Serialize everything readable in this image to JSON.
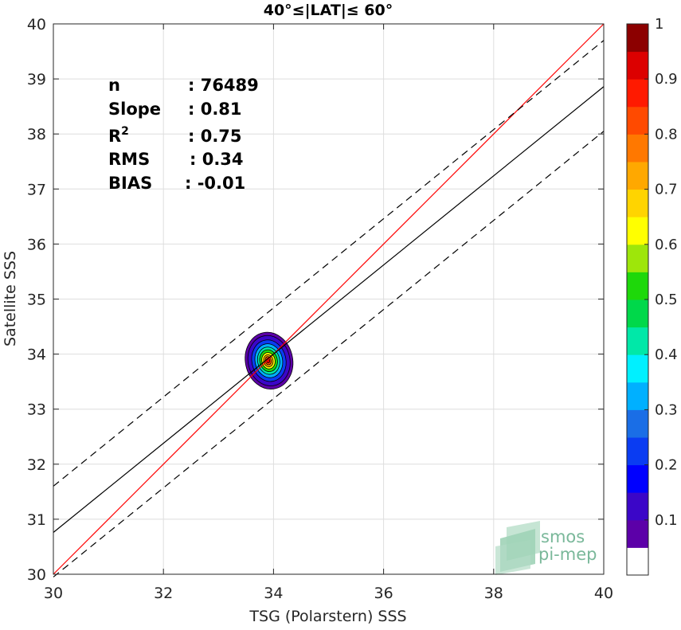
{
  "chart_data": {
    "type": "heatmap",
    "title": "40°≤|LAT|≤ 60°",
    "xlabel": "TSG (Polarstern) SSS",
    "ylabel": "Satellite SSS",
    "xlim": [
      30,
      40
    ],
    "ylim": [
      30,
      40
    ],
    "xticks": [
      "30",
      "32",
      "34",
      "36",
      "38",
      "40"
    ],
    "yticks": [
      "30",
      "31",
      "32",
      "33",
      "34",
      "35",
      "36",
      "37",
      "38",
      "39",
      "40"
    ],
    "grid": true,
    "stats": [
      {
        "label": "n",
        "value": ": 76489"
      },
      {
        "label": "Slope",
        "value": ": 0.81"
      },
      {
        "label": "R",
        "sup": "2",
        "value": ": 0.75"
      },
      {
        "label": "RMS",
        "value": ": 0.34"
      },
      {
        "label": "BIAS",
        "value": ": -0.01"
      }
    ],
    "lines": [
      {
        "name": "one-to-one",
        "color": "#ff0000",
        "style": "solid",
        "x": [
          30,
          40
        ],
        "y": [
          30,
          40
        ]
      },
      {
        "name": "regression",
        "color": "#000000",
        "style": "solid",
        "x": [
          30,
          40
        ],
        "y": [
          30.76,
          38.86
        ]
      },
      {
        "name": "upper-bound",
        "color": "#000000",
        "style": "dashed",
        "x": [
          30,
          40
        ],
        "y": [
          31.6,
          39.7
        ]
      },
      {
        "name": "lower-bound",
        "color": "#000000",
        "style": "dashed",
        "x": [
          30,
          40
        ],
        "y": [
          29.95,
          38.05
        ]
      }
    ],
    "density_peak": {
      "x": 33.9,
      "y": 33.88
    },
    "density_contours": [
      {
        "level": 0.05,
        "rx": 0.43,
        "ry": 0.52
      },
      {
        "level": 0.1,
        "rx": 0.38,
        "ry": 0.46
      },
      {
        "level": 0.2,
        "rx": 0.31,
        "ry": 0.38
      },
      {
        "level": 0.3,
        "rx": 0.25,
        "ry": 0.31
      },
      {
        "level": 0.4,
        "rx": 0.2,
        "ry": 0.25
      },
      {
        "level": 0.5,
        "rx": 0.16,
        "ry": 0.2
      },
      {
        "level": 0.6,
        "rx": 0.12,
        "ry": 0.15
      },
      {
        "level": 0.7,
        "rx": 0.085,
        "ry": 0.11
      },
      {
        "level": 0.8,
        "rx": 0.055,
        "ry": 0.075
      },
      {
        "level": 0.9,
        "rx": 0.03,
        "ry": 0.04
      }
    ],
    "colorbar": {
      "ticks": [
        "0.1",
        "0.2",
        "0.3",
        "0.4",
        "0.5",
        "0.6",
        "0.7",
        "0.8",
        "0.9",
        "1"
      ],
      "colors": [
        "#ffffff",
        "#5c00a8",
        "#3b06c8",
        "#0000ff",
        "#0a3cf2",
        "#1a6ee6",
        "#00b0ff",
        "#00f0ff",
        "#00e8a8",
        "#00d84a",
        "#1ed80a",
        "#9ee60a",
        "#ffff00",
        "#ffd400",
        "#ffa800",
        "#ff7800",
        "#ff4a00",
        "#ff1a00",
        "#dc0000",
        "#8c0000"
      ]
    },
    "logo": {
      "line1": "smos",
      "line2": "pi-mep"
    }
  }
}
